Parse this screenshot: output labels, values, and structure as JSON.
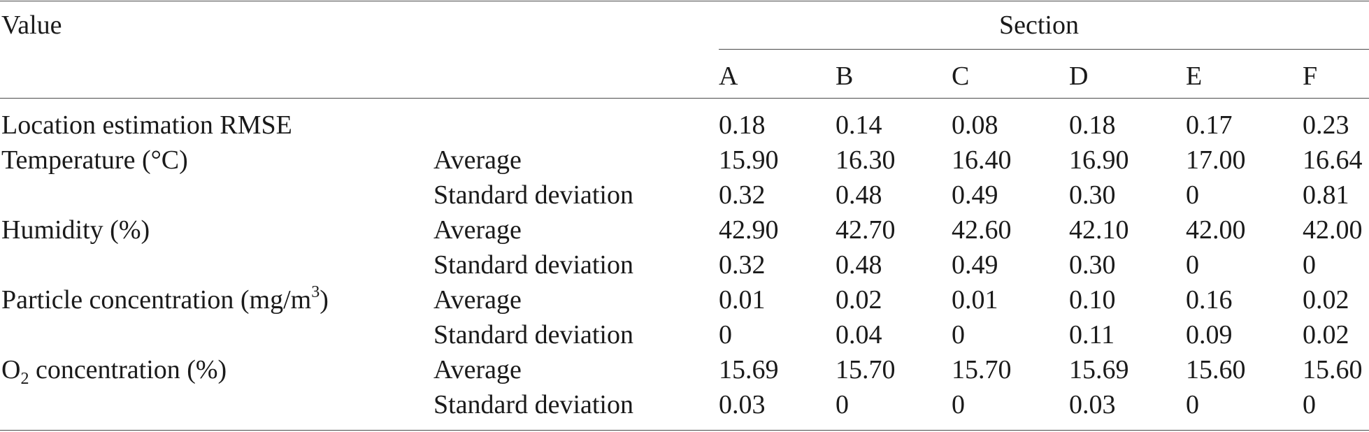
{
  "header": {
    "value_label": "Value",
    "section_label": "Section",
    "columns": [
      "A",
      "B",
      "C",
      "D",
      "E",
      "F"
    ]
  },
  "rows": [
    {
      "label": "Location estimation RMSE",
      "stat": "",
      "values": [
        "0.18",
        "0.14",
        "0.08",
        "0.18",
        "0.17",
        "0.23"
      ]
    },
    {
      "label": "Temperature (°C)",
      "stat": "Average",
      "values": [
        "15.90",
        "16.30",
        "16.40",
        "16.90",
        "17.00",
        "16.64"
      ]
    },
    {
      "label": "",
      "stat": "Standard deviation",
      "values": [
        "0.32",
        "0.48",
        "0.49",
        "0.30",
        "0",
        "0.81"
      ]
    },
    {
      "label": "Humidity (%)",
      "stat": "Average",
      "values": [
        "42.90",
        "42.70",
        "42.60",
        "42.10",
        "42.00",
        "42.00"
      ]
    },
    {
      "label": "",
      "stat": "Standard deviation",
      "values": [
        "0.32",
        "0.48",
        "0.49",
        "0.30",
        "0",
        "0"
      ]
    },
    {
      "label_parts": [
        "Particle concentration (mg/m",
        "3",
        ")"
      ],
      "stat": "Average",
      "values": [
        "0.01",
        "0.02",
        "0.01",
        "0.10",
        "0.16",
        "0.02"
      ]
    },
    {
      "label": "",
      "stat": "Standard deviation",
      "values": [
        "0",
        "0.04",
        "0",
        "0.11",
        "0.09",
        "0.02"
      ]
    },
    {
      "label_parts": [
        "O",
        "2",
        " concentration (%)"
      ],
      "stat": "Average",
      "values": [
        "15.69",
        "15.70",
        "15.70",
        "15.69",
        "15.60",
        "15.60"
      ]
    },
    {
      "label": "",
      "stat": "Standard deviation",
      "values": [
        "0.03",
        "0",
        "0",
        "0.03",
        "0",
        "0"
      ]
    }
  ]
}
